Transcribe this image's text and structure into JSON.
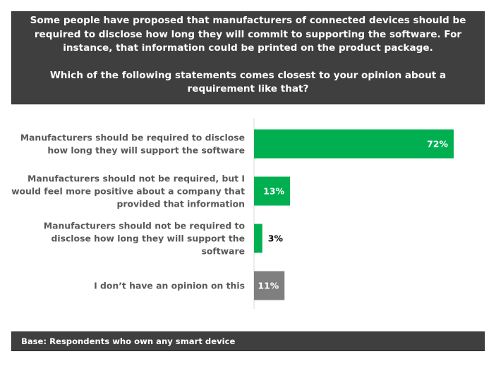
{
  "header": {
    "intro": "Some people have proposed that manufacturers of connected devices should be required to disclose how long they will commit to supporting the software. For instance, that information could be printed on the product package.",
    "question": "Which of the following statements comes closest to your opinion about a requirement like that?"
  },
  "chart_data": {
    "type": "bar",
    "orientation": "horizontal",
    "categories": [
      [
        "Manufacturers should be required to disclose",
        "how long they will support the software"
      ],
      [
        "Manufacturers should not be required, but I",
        "would feel more positive about a company that",
        "provided that information"
      ],
      [
        "Manufacturers should not be required to",
        "disclose how long they will support the",
        "software"
      ],
      [
        "I don’t have an opinion on this"
      ]
    ],
    "values": [
      72,
      13,
      3,
      11
    ],
    "data_labels": [
      "72%",
      "13%",
      "3%",
      "11%"
    ],
    "colors": [
      "#00b050",
      "#00b050",
      "#00b050",
      "#7f7f7f"
    ],
    "xlim": [
      0,
      100
    ],
    "grid": false,
    "legend": "none"
  },
  "footer": {
    "base": "Base: Respondents who own any smart device"
  }
}
